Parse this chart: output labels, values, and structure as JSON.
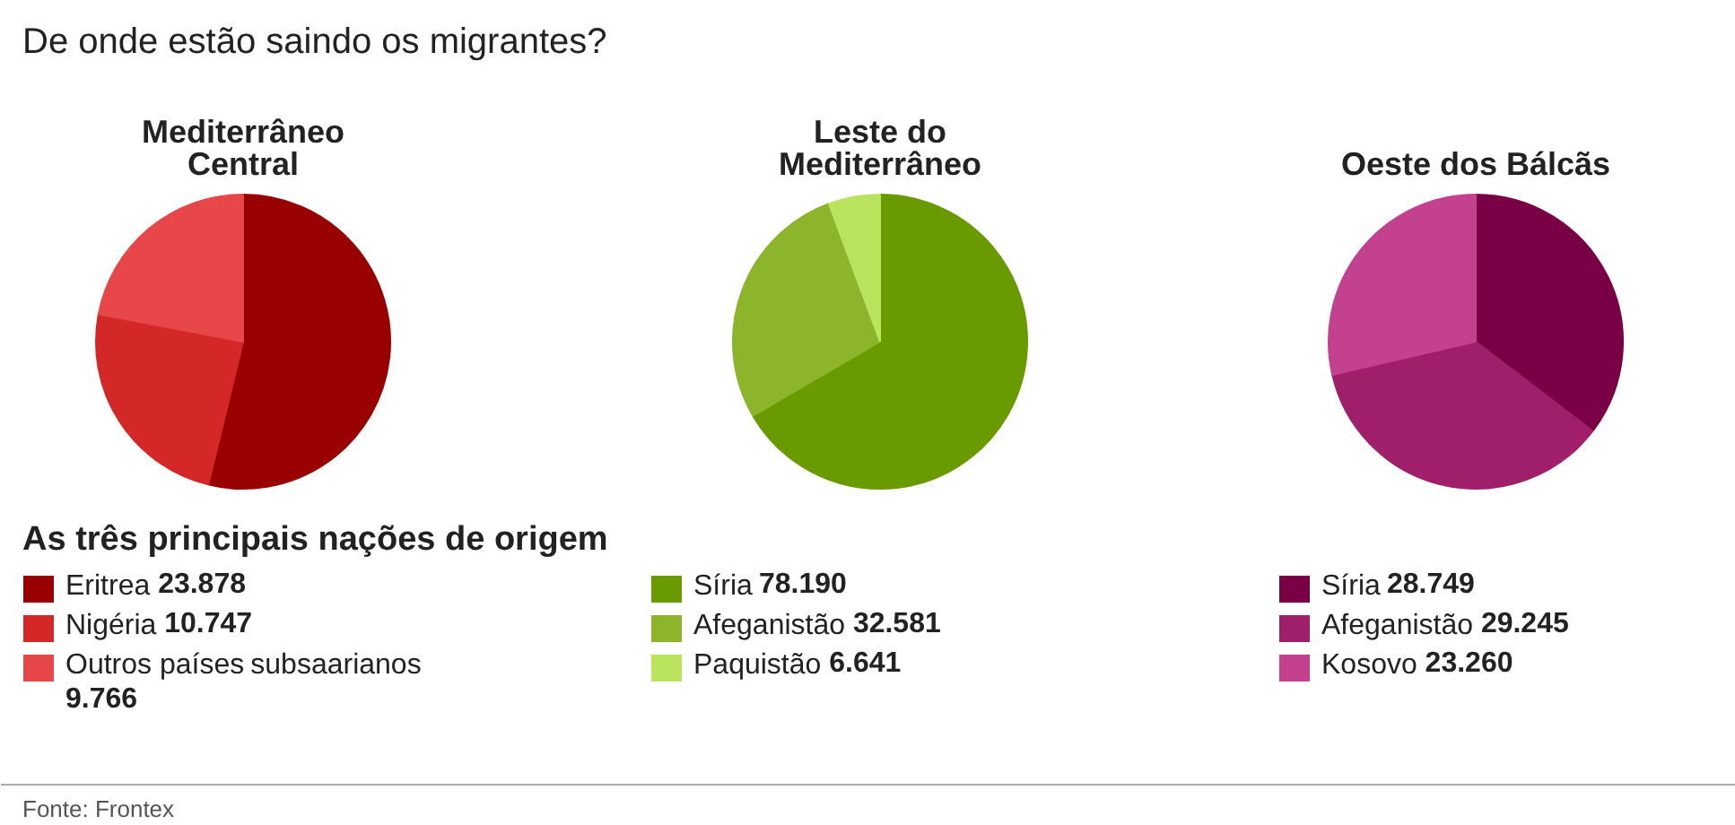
{
  "chart_data": [
    {
      "type": "pie",
      "title": "De onde estão saindo os migrantes?",
      "subtitle": "Mediterrâneo Central",
      "legend_title": "As três principais nações de origem",
      "annotations": [
        "Fonte: Frontex"
      ],
      "legend": "bottom",
      "data_labels": true,
      "categories": [
        "Eritrea",
        "Nigéria",
        "Outros países subsaarianos"
      ],
      "values": [
        23878,
        10747,
        9766
      ],
      "value_labels": [
        "23.878",
        "10.747",
        "9.766"
      ],
      "colors": [
        "#990000",
        "#d42727",
        "#e8474a"
      ]
    },
    {
      "type": "pie",
      "subtitle": "Leste do Mediterrâneo",
      "legend": "bottom",
      "data_labels": true,
      "categories": [
        "Síria",
        "Afeganistão",
        "Paquistão"
      ],
      "values": [
        78190,
        32581,
        6641
      ],
      "value_labels": [
        "78.190",
        "32.581",
        "6.641"
      ],
      "colors": [
        "#699a00",
        "#8db52c",
        "#bae35e"
      ]
    },
    {
      "type": "pie",
      "subtitle": "Oeste dos Bálcãs",
      "legend": "bottom",
      "data_labels": true,
      "categories": [
        "Síria",
        "Afeganistão",
        "Kosovo"
      ],
      "values": [
        28749,
        29245,
        23260
      ],
      "value_labels": [
        "28.749",
        "29.245",
        "23.260"
      ],
      "colors": [
        "#7a0045",
        "#a01f6a",
        "#c3418f"
      ]
    }
  ]
}
